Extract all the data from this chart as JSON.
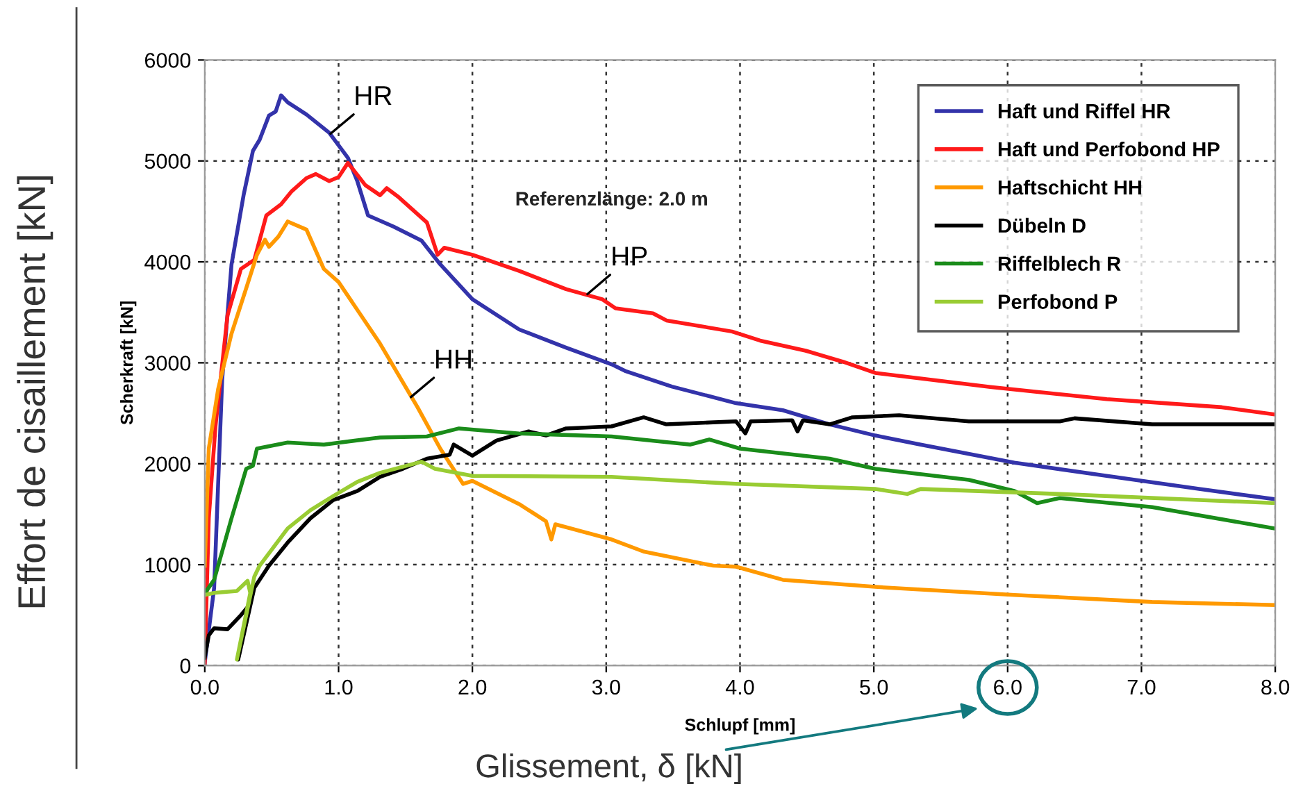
{
  "chart_data": {
    "type": "line",
    "xlabel": "Schlupf [mm]",
    "ylabel": "Scherkraft [kN]",
    "xlim": [
      0,
      8
    ],
    "ylim": [
      0,
      6000
    ],
    "xticks": [
      {
        "value": 0,
        "label": "0.0"
      },
      {
        "value": 1,
        "label": "1.0"
      },
      {
        "value": 2,
        "label": "2.0"
      },
      {
        "value": 3,
        "label": "3.0"
      },
      {
        "value": 4,
        "label": "4.0"
      },
      {
        "value": 5,
        "label": "5.0"
      },
      {
        "value": 6,
        "label": "6.0"
      },
      {
        "value": 7,
        "label": "7.0"
      },
      {
        "value": 8,
        "label": "8.0"
      }
    ],
    "yticks": [
      0,
      1000,
      2000,
      3000,
      4000,
      5000,
      6000
    ],
    "grid": true,
    "legend": "top right",
    "line_style": "solid",
    "marker": "none",
    "series": [
      {
        "name": "Haft und Riffel HR",
        "color": "#3333aa",
        "x": [
          0,
          0.07,
          0.13,
          0.2,
          0.29,
          0.36,
          0.41,
          0.48,
          0.53,
          0.57,
          0.62,
          0.76,
          0.93,
          1.07,
          1.14,
          1.22,
          1.41,
          1.62,
          1.76,
          2.0,
          2.35,
          2.7,
          3.04,
          3.14,
          3.49,
          3.97,
          4.32,
          4.67,
          5.01,
          5.35,
          6.05,
          6.74,
          7.43,
          7.99
        ],
        "values": [
          30,
          770,
          2830,
          3975,
          4660,
          5100,
          5210,
          5450,
          5490,
          5650,
          5580,
          5460,
          5280,
          5030,
          4800,
          4460,
          4350,
          4210,
          3975,
          3630,
          3330,
          3150,
          2985,
          2920,
          2765,
          2600,
          2530,
          2390,
          2280,
          2190,
          2010,
          1880,
          1750,
          1650
        ]
      },
      {
        "name": "Haft und Perfobond HP",
        "color": "#ff1a1a",
        "x": [
          0,
          0.03,
          0.08,
          0.17,
          0.27,
          0.37,
          0.46,
          0.57,
          0.65,
          0.76,
          0.83,
          0.93,
          1.0,
          1.07,
          1.2,
          1.31,
          1.36,
          1.45,
          1.66,
          1.74,
          1.79,
          2.0,
          2.35,
          2.7,
          2.97,
          3.07,
          3.35,
          3.45,
          3.94,
          4.15,
          4.49,
          4.77,
          5.01,
          5.87,
          6.74,
          7.6,
          7.99
        ],
        "values": [
          30,
          1460,
          2370,
          3470,
          3930,
          4020,
          4460,
          4570,
          4700,
          4830,
          4870,
          4800,
          4840,
          4980,
          4760,
          4660,
          4730,
          4640,
          4390,
          4070,
          4140,
          4070,
          3910,
          3730,
          3630,
          3540,
          3490,
          3420,
          3310,
          3220,
          3120,
          3010,
          2900,
          2760,
          2640,
          2560,
          2490
        ]
      },
      {
        "name": "Haftschicht HH",
        "color": "#ff9900",
        "x": [
          0,
          0.03,
          0.1,
          0.2,
          0.31,
          0.39,
          0.45,
          0.48,
          0.55,
          0.62,
          0.76,
          0.89,
          1.0,
          1.31,
          1.59,
          1.76,
          1.93,
          2.0,
          2.35,
          2.55,
          2.59,
          2.62,
          3.04,
          3.28,
          3.8,
          3.97,
          4.32,
          5.01,
          6.05,
          7.08,
          7.99
        ],
        "values": [
          990,
          2150,
          2740,
          3290,
          3740,
          4070,
          4220,
          4150,
          4250,
          4400,
          4320,
          3930,
          3800,
          3190,
          2560,
          2150,
          1800,
          1830,
          1600,
          1430,
          1250,
          1400,
          1250,
          1130,
          990,
          980,
          850,
          780,
          700,
          630,
          600
        ]
      },
      {
        "name": "Dübeln D",
        "color": "#000000",
        "x": [
          0,
          0.03,
          0.07,
          0.17,
          0.27,
          0.32,
          0.25,
          0.37,
          0.48,
          0.62,
          0.79,
          0.96,
          1.14,
          1.31,
          1.48,
          1.66,
          1.83,
          1.86,
          2.0,
          2.18,
          2.42,
          2.55,
          2.7,
          3.04,
          3.28,
          3.45,
          3.97,
          4.04,
          4.08,
          4.39,
          4.43,
          4.47,
          4.67,
          4.84,
          5.19,
          5.71,
          6.39,
          6.5,
          7.08,
          7.99
        ],
        "values": [
          80,
          300,
          370,
          360,
          500,
          580,
          60,
          770,
          990,
          1220,
          1460,
          1640,
          1730,
          1870,
          1950,
          2050,
          2090,
          2190,
          2080,
          2230,
          2320,
          2280,
          2350,
          2370,
          2460,
          2390,
          2420,
          2300,
          2420,
          2430,
          2320,
          2430,
          2390,
          2460,
          2480,
          2420,
          2420,
          2450,
          2390,
          2390
        ]
      },
      {
        "name": "Riffelblech R",
        "color": "#1a8c1a",
        "x": [
          0,
          0.07,
          0.2,
          0.31,
          0.36,
          0.39,
          0.62,
          0.89,
          1.31,
          1.66,
          1.9,
          2.35,
          3.04,
          3.63,
          3.77,
          4.0,
          4.67,
          5.01,
          5.71,
          6.05,
          6.22,
          6.39,
          7.08,
          7.99
        ],
        "values": [
          715,
          850,
          1460,
          1950,
          1980,
          2150,
          2210,
          2190,
          2260,
          2270,
          2350,
          2300,
          2270,
          2190,
          2240,
          2150,
          2050,
          1950,
          1840,
          1730,
          1610,
          1660,
          1570,
          1360
        ]
      },
      {
        "name": "Perfobond P",
        "color": "#99cc33",
        "x": [
          0,
          0.07,
          0.24,
          0.32,
          0.34,
          0.24,
          0.37,
          0.41,
          0.62,
          0.79,
          0.96,
          1.14,
          1.31,
          1.62,
          1.72,
          2.0,
          3.04,
          3.97,
          5.01,
          5.25,
          5.35,
          6.39,
          7.99
        ],
        "values": [
          700,
          720,
          740,
          840,
          720,
          60,
          880,
          990,
          1360,
          1540,
          1680,
          1820,
          1910,
          2020,
          1950,
          1880,
          1870,
          1800,
          1750,
          1700,
          1750,
          1700,
          1610
        ]
      }
    ],
    "annotations": [
      {
        "text": "HR",
        "x": 0.94,
        "y": 5270
      },
      {
        "text": "HP",
        "x": 2.86,
        "y": 3680
      },
      {
        "text": "HH",
        "x": 1.54,
        "y": 2660
      },
      "Referenzlänge: 2.0 m",
      "Effort de cisaillement [kN]",
      "Glissement, δ [kN]"
    ]
  }
}
